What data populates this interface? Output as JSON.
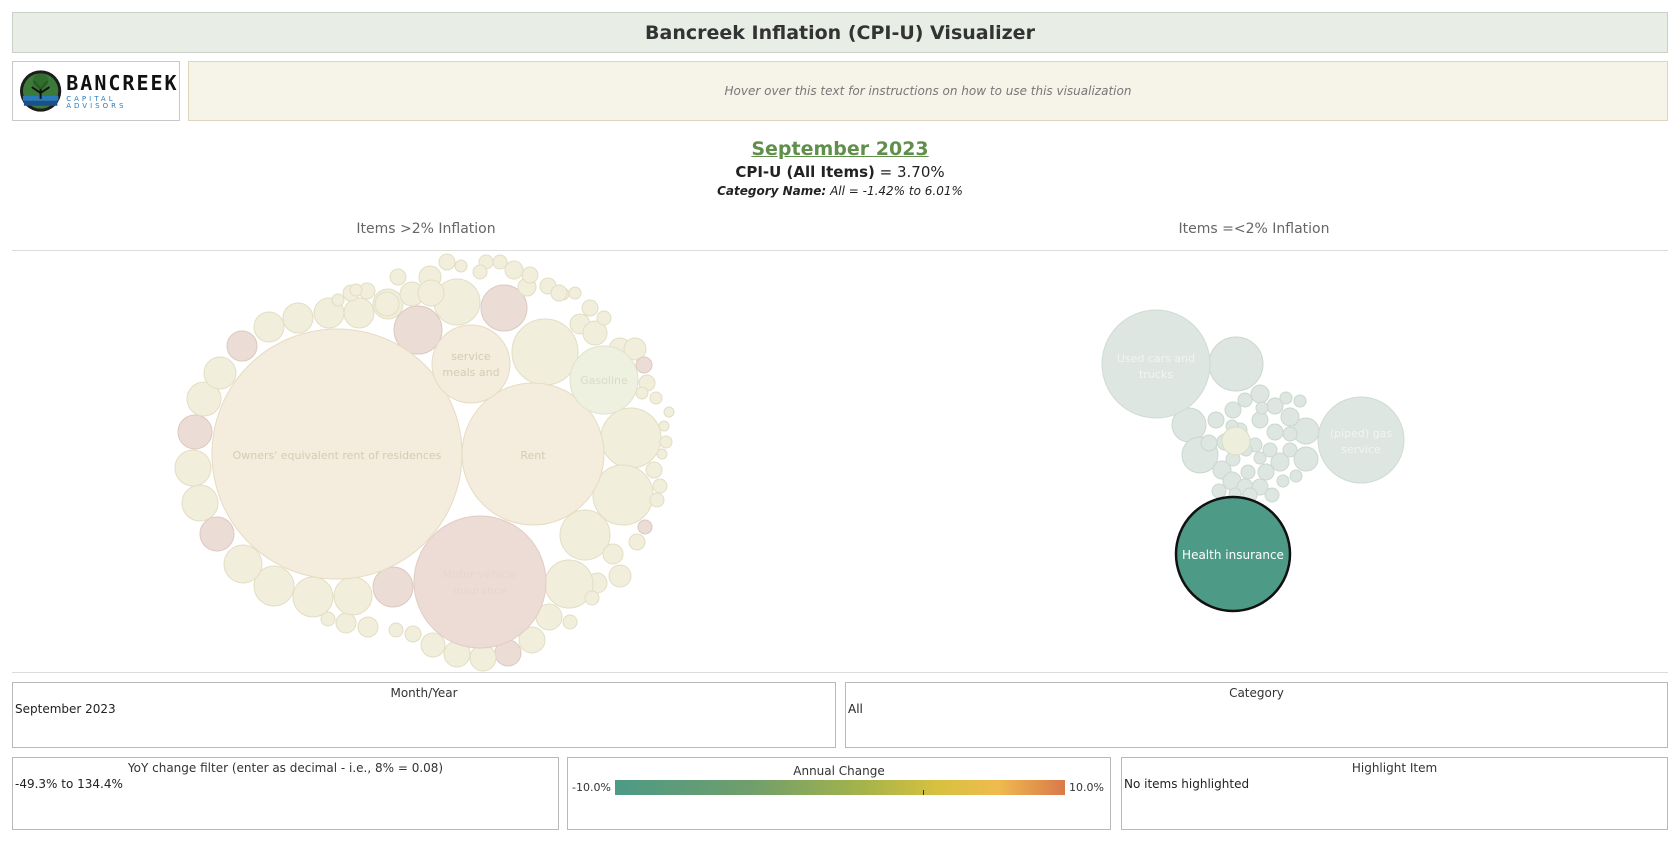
{
  "header": {
    "title": "Bancreek Inflation (CPI-U) Visualizer"
  },
  "logo": {
    "name": "BANCREEK",
    "subtitle": "CAPITAL ADVISORS"
  },
  "instructions": "Hover over this text for instructions on how to use this visualization",
  "summary": {
    "month": "September 2023",
    "cpi_label": "CPI-U (All Items)",
    "cpi_value": "= 3.70%",
    "category_label": "Category Name:",
    "category_value": "All = -1.42% to 6.01%"
  },
  "sections": {
    "left_title": "Items >2% Inflation",
    "right_title": "Items =<2% Inflation"
  },
  "bubble_labels": {
    "oer": "Owners' equivalent rent of residences",
    "rent": "Rent",
    "motor_1": "Motor vehicle",
    "motor_2": "insurance",
    "service_1": "service",
    "service_2": "meals and",
    "gasoline": "Gasoline",
    "used_cars_1": "Used cars and",
    "used_cars_2": "trucks",
    "gas_service_1": "(piped) gas",
    "gas_service_2": "service",
    "health": "Health insurance"
  },
  "colors": {
    "accent_green": "#5f8f4b",
    "highlight_bubble": "#4d9a86",
    "faded_cream": "#f3ead8",
    "faded_pink": "#ecdcd6",
    "faded_green": "#dde6e0"
  },
  "filters": {
    "month_year": {
      "label": "Month/Year",
      "value": "September 2023"
    },
    "category": {
      "label": "Category",
      "value": "All"
    },
    "yoy": {
      "label": "YoY change filter (enter as decimal - i.e., 8% = 0.08)",
      "value": "-49.3% to 134.4%"
    },
    "legend": {
      "label": "Annual Change",
      "min": "-10.0%",
      "max": "10.0%",
      "marker_value": 0.037
    },
    "highlight": {
      "label": "Highlight Item",
      "value": "No items highlighted"
    }
  }
}
